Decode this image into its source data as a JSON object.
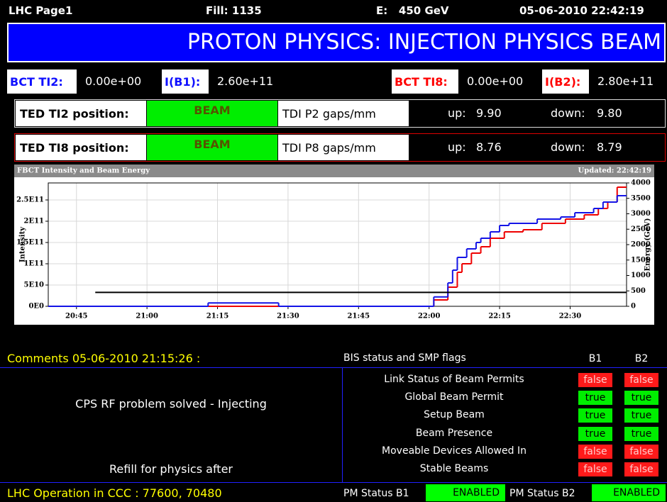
{
  "header": {
    "page": "LHC Page1",
    "fill": "Fill: 1135",
    "energy": "E:   450 GeV",
    "datetime": "05-06-2010 22:42:19"
  },
  "banner": "PROTON PHYSICS: INJECTION PHYSICS BEAM",
  "bct": {
    "ti2_label": "BCT TI2:",
    "ti2_value": "0.00e+00",
    "ib1_label": "I(B1):",
    "ib1_value": "2.60e+11",
    "ti8_label": "BCT TI8:",
    "ti8_value": "0.00e+00",
    "ib2_label": "I(B2):",
    "ib2_value": "2.80e+11"
  },
  "ted_rows": [
    {
      "label": "TED TI2 position:",
      "state": "BEAM",
      "tdi": "TDI P2 gaps/mm",
      "up_label": "up:",
      "up": "9.90",
      "down_label": "down:",
      "down": "9.80"
    },
    {
      "label": "TED TI8 position:",
      "state": "BEAM",
      "tdi": "TDI P8 gaps/mm",
      "up_label": "up:",
      "up": "8.76",
      "down_label": "down:",
      "down": "8.79"
    }
  ],
  "chart_data": {
    "type": "line",
    "step": true,
    "title": "FBCT Intensity and Beam Energy",
    "updated": "Updated: 22:42:19",
    "y_label": "Intensity",
    "y2_label": "Energy (GeV)",
    "xlim": [
      "20:39",
      "22:42"
    ],
    "xticks": [
      "20:45",
      "21:00",
      "21:15",
      "21:30",
      "21:45",
      "22:00",
      "22:15",
      "22:30"
    ],
    "ylim": [
      0,
      290000000000
    ],
    "yticks": [
      {
        "value": 0,
        "label": "0E0"
      },
      {
        "value": 50000000000,
        "label": "5E10"
      },
      {
        "value": 100000000000,
        "label": "1E11"
      },
      {
        "value": 150000000000,
        "label": "1.5E11"
      },
      {
        "value": 200000000000,
        "label": "2E11"
      },
      {
        "value": 250000000000,
        "label": "2.5E11"
      }
    ],
    "y2lim": [
      0,
      4000
    ],
    "y2ticks": [
      0,
      500,
      1000,
      1500,
      2000,
      2500,
      3000,
      3500,
      4000
    ],
    "grid": true,
    "series": [
      {
        "color": "#ee0000",
        "x": [
          "20:39",
          "22:01",
          "22:04",
          "22:06",
          "22:07",
          "22:09",
          "22:11",
          "22:13",
          "22:16",
          "22:20",
          "22:24",
          "22:29",
          "22:33",
          "22:36",
          "22:38",
          "22:40"
        ],
        "values": [
          0,
          15000000000,
          45000000000,
          80000000000,
          100000000000,
          125000000000,
          140000000000,
          160000000000,
          175000000000,
          180000000000,
          195000000000,
          205000000000,
          215000000000,
          230000000000,
          245000000000,
          280000000000
        ]
      },
      {
        "color": "#1414e6",
        "x": [
          "20:39",
          "21:13",
          "21:28",
          "22:01",
          "22:04",
          "22:05",
          "22:06",
          "22:08",
          "22:10",
          "22:11",
          "22:13",
          "22:15",
          "22:17",
          "22:23",
          "22:28",
          "22:31",
          "22:35",
          "22:37",
          "22:40"
        ],
        "values": [
          0,
          8000000000,
          0,
          22000000000,
          55000000000,
          85000000000,
          115000000000,
          135000000000,
          150000000000,
          160000000000,
          175000000000,
          190000000000,
          195000000000,
          205000000000,
          210000000000,
          220000000000,
          230000000000,
          245000000000,
          260000000000
        ]
      },
      {
        "color": "#000000",
        "axis": "y2",
        "x": [
          "20:49"
        ],
        "values": [
          450
        ]
      }
    ]
  },
  "comments": {
    "title": "Comments 05-06-2010 21:15:26 :",
    "lines": [
      "CPS RF problem solved - Injecting",
      "Refill for physics after"
    ]
  },
  "flags": {
    "title": "BIS status and SMP flags",
    "columns": [
      "B1",
      "B2"
    ],
    "rows": [
      {
        "name": "Link Status of Beam Permits",
        "b1": "false",
        "b2": "false"
      },
      {
        "name": "Global Beam Permit",
        "b1": "true",
        "b2": "true"
      },
      {
        "name": "Setup Beam",
        "b1": "true",
        "b2": "true"
      },
      {
        "name": "Beam Presence",
        "b1": "true",
        "b2": "true"
      },
      {
        "name": "Moveable Devices Allowed In",
        "b1": "false",
        "b2": "false"
      },
      {
        "name": "Stable Beams",
        "b1": "false",
        "b2": "false"
      }
    ]
  },
  "footer": {
    "operation": "LHC Operation in CCC : 77600, 70480",
    "pm_b1_label": "PM Status B1",
    "pm_b1": "ENABLED",
    "pm_b2_label": "PM Status B2",
    "pm_b2": "ENABLED"
  }
}
